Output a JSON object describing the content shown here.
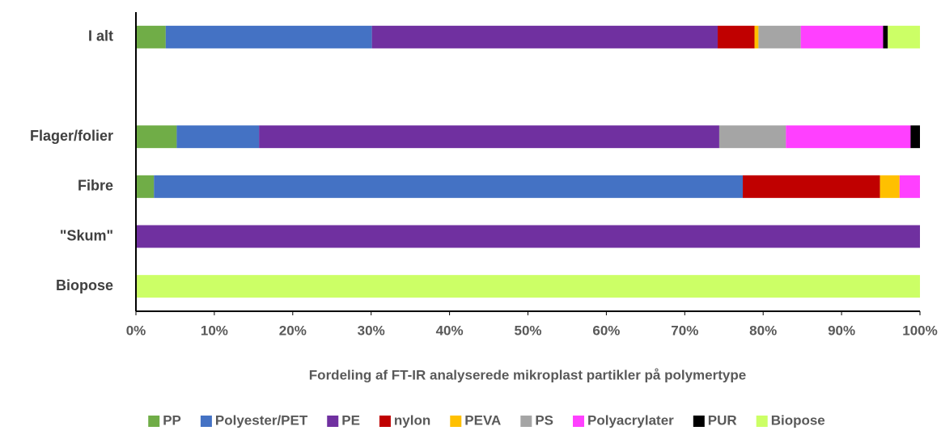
{
  "chart_data": {
    "type": "stacked-barh",
    "x_label": "Fordeling af FT-IR analyserede mikroplast partikler på polymertype",
    "categories": [
      "I alt",
      null,
      "Flager/folier",
      "Fibre",
      "\"Skum\"",
      "Biopose"
    ],
    "series": [
      {
        "name": "PP",
        "color": "#70ad47",
        "values": [
          3.8,
          null,
          5.2,
          2.3,
          0,
          0
        ]
      },
      {
        "name": "Polyester/PET",
        "color": "#4472c4",
        "values": [
          26.3,
          null,
          10.5,
          75.1,
          0,
          0
        ]
      },
      {
        "name": "PE",
        "color": "#7030a0",
        "values": [
          44.1,
          null,
          58.7,
          0,
          100,
          0
        ]
      },
      {
        "name": "nylon",
        "color": "#c00000",
        "values": [
          4.7,
          null,
          0,
          17.5,
          0,
          0
        ]
      },
      {
        "name": "PEVA",
        "color": "#ffc000",
        "values": [
          0.5,
          null,
          0,
          2.5,
          0,
          0
        ]
      },
      {
        "name": "PS",
        "color": "#a5a5a5",
        "values": [
          5.4,
          null,
          8.5,
          0,
          0,
          0
        ]
      },
      {
        "name": "Polyacrylater",
        "color": "#ff40ff",
        "values": [
          10.5,
          null,
          15.9,
          2.6,
          0,
          0
        ]
      },
      {
        "name": "PUR",
        "color": "#000000",
        "values": [
          0.6,
          null,
          1.2,
          0,
          0,
          0
        ]
      },
      {
        "name": "Biopose",
        "color": "#ccff66",
        "values": [
          4.1,
          null,
          0,
          0,
          0,
          100
        ]
      }
    ],
    "xlim": [
      0,
      100
    ],
    "xticks": [
      {
        "value": 0,
        "label": "0%"
      },
      {
        "value": 10,
        "label": "10%"
      },
      {
        "value": 20,
        "label": "20%"
      },
      {
        "value": 30,
        "label": "30%"
      },
      {
        "value": 40,
        "label": "40%"
      },
      {
        "value": 50,
        "label": "50%"
      },
      {
        "value": 60,
        "label": "60%"
      },
      {
        "value": 70,
        "label": "70%"
      },
      {
        "value": 80,
        "label": "80%"
      },
      {
        "value": 90,
        "label": "90%"
      },
      {
        "value": 100,
        "label": "100%"
      }
    ],
    "legend": "bottom"
  }
}
